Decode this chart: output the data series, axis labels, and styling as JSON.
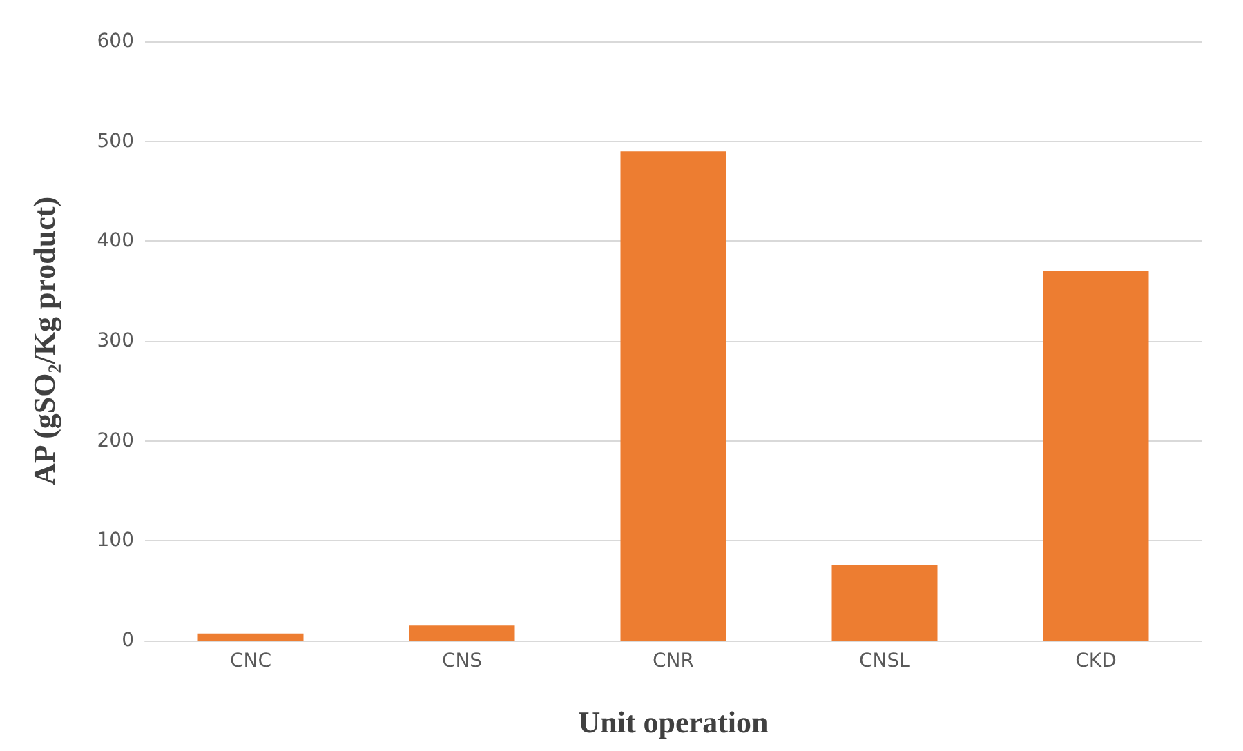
{
  "chart_data": {
    "type": "bar",
    "xlabel": "Unit operation",
    "ylabel": "AP (gSO₂/Kg product)",
    "categories": [
      "CNC",
      "CNS",
      "CNR",
      "CNSL",
      "CKD"
    ],
    "values": [
      7,
      15,
      490,
      76,
      370
    ],
    "color": "#ed7d31",
    "ylim": [
      0,
      600
    ],
    "yticks": [
      0,
      100,
      200,
      300,
      400,
      500,
      600
    ],
    "grid": "y"
  }
}
